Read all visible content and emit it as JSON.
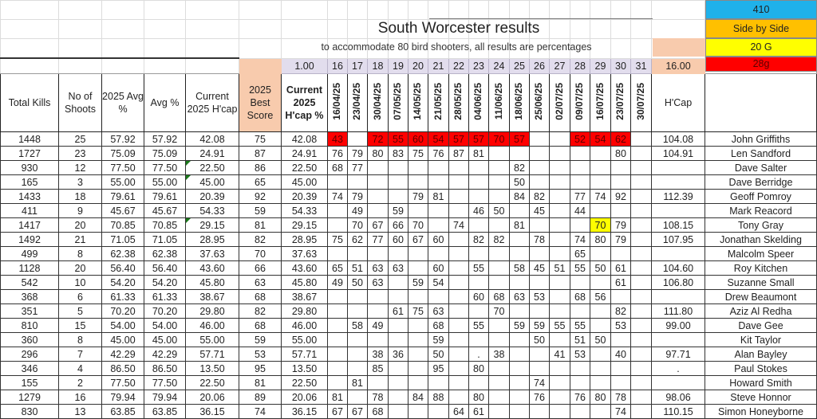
{
  "title": "South Worcester results",
  "subtitle": "to accommodate 80 bird shooters, all results are percentages",
  "legend": [
    {
      "label": "410",
      "color": "#1fb1ea"
    },
    {
      "label": "Side by Side",
      "color": "#ffc000"
    },
    {
      "label": "20 G",
      "color": "#ffff00"
    },
    {
      "label": "28g",
      "color": "#ff0000"
    }
  ],
  "factor": "1.00",
  "hcap_factor": "16.00",
  "shoot_numbers": [
    "16",
    "17",
    "18",
    "19",
    "20",
    "21",
    "22",
    "23",
    "24",
    "25",
    "26",
    "27",
    "28",
    "29",
    "30",
    "31"
  ],
  "headers": {
    "total_kills": "Total  Kills",
    "no_of_shoots": "No of Shoots",
    "avg_2025": "2025 Avg   %",
    "avg": "Avg %",
    "current_hcap": "Current 2025 H'cap",
    "best_score": "2025 Best Score",
    "current_hcap_pct": "Current 2025 H'cap %",
    "hcap": "H'Cap"
  },
  "dates": [
    "16/04/25",
    "23/04/25",
    "30/04/25",
    "07/05/25",
    "14/05/25",
    "21/05/25",
    "28/05/25",
    "04/06/25",
    "11/06/25",
    "18/06/25",
    "25/06/25",
    "02/07/25",
    "09/07/25",
    "16/07/25",
    "23/07/25",
    "30/07/25"
  ],
  "highlight_colors": {
    "red": "#ff0000",
    "yellow": "#ffff00"
  },
  "rows": [
    {
      "total_kills": "1448",
      "shoots": "25",
      "avg_2025": "57.92",
      "avg": "57.92",
      "current_hcap": "42.08",
      "best": "75",
      "current_hcap_pct": "42.08",
      "scores": [
        "43",
        "",
        "72",
        "55",
        "60",
        "54",
        "57",
        "57",
        "70",
        "57",
        "",
        "",
        "52",
        "54",
        "62",
        ""
      ],
      "hcap": "104.08",
      "name": "John Griffiths",
      "fill": "red"
    },
    {
      "total_kills": "1727",
      "shoots": "23",
      "avg_2025": "75.09",
      "avg": "75.09",
      "current_hcap": "24.91",
      "best": "87",
      "current_hcap_pct": "24.91",
      "scores": [
        "76",
        "79",
        "80",
        "83",
        "75",
        "76",
        "87",
        "81",
        "",
        "",
        "",
        "",
        "",
        "",
        "80",
        ""
      ],
      "hcap": "104.91",
      "name": "Len Sandford"
    },
    {
      "total_kills": "930",
      "shoots": "12",
      "avg_2025": "77.50",
      "avg": "77.50",
      "current_hcap": "22.50",
      "best": "86",
      "current_hcap_pct": "22.50",
      "scores": [
        "68",
        "77",
        "",
        "",
        "",
        "",
        "",
        "",
        "",
        "82",
        "",
        "",
        "",
        "",
        "",
        ""
      ],
      "hcap": "",
      "name": "Dave Salter"
    },
    {
      "total_kills": "165",
      "shoots": "3",
      "avg_2025": "55.00",
      "avg": "55.00",
      "current_hcap": "45.00",
      "best": "65",
      "current_hcap_pct": "45.00",
      "scores": [
        "",
        "",
        "",
        "",
        "",
        "",
        "",
        "",
        "",
        "50",
        "",
        "",
        "",
        "",
        "",
        ""
      ],
      "hcap": "",
      "name": "Dave Berridge"
    },
    {
      "total_kills": "1433",
      "shoots": "18",
      "avg_2025": "79.61",
      "avg": "79.61",
      "current_hcap": "20.39",
      "best": "92",
      "current_hcap_pct": "20.39",
      "scores": [
        "74",
        "79",
        "",
        "",
        "79",
        "81",
        "",
        "",
        "",
        "84",
        "82",
        "",
        "77",
        "74",
        "92",
        ""
      ],
      "hcap": "112.39",
      "name": "Geoff  Pomroy"
    },
    {
      "total_kills": "411",
      "shoots": "9",
      "avg_2025": "45.67",
      "avg": "45.67",
      "current_hcap": "54.33",
      "best": "59",
      "current_hcap_pct": "54.33",
      "scores": [
        "",
        "49",
        "",
        "59",
        "",
        "",
        "",
        "46",
        "50",
        "",
        "45",
        "",
        "44",
        "",
        "",
        ""
      ],
      "hcap": "",
      "name": "Mark Reacord"
    },
    {
      "total_kills": "1417",
      "shoots": "20",
      "avg_2025": "70.85",
      "avg": "70.85",
      "current_hcap": "29.15",
      "best": "81",
      "current_hcap_pct": "29.15",
      "scores": [
        "",
        "70",
        "67",
        "66",
        "70",
        "",
        "74",
        "",
        "",
        "81",
        "",
        "",
        "",
        "70",
        "79",
        ""
      ],
      "hcap": "108.15",
      "name": "Tony Gray",
      "yellow_index": 13
    },
    {
      "total_kills": "1492",
      "shoots": "21",
      "avg_2025": "71.05",
      "avg": "71.05",
      "current_hcap": "28.95",
      "best": "82",
      "current_hcap_pct": "28.95",
      "scores": [
        "75",
        "62",
        "77",
        "60",
        "67",
        "60",
        "",
        "82",
        "82",
        "",
        "78",
        "",
        "74",
        "80",
        "79",
        ""
      ],
      "hcap": "107.95",
      "name": "Jonathan Skelding"
    },
    {
      "total_kills": "499",
      "shoots": "8",
      "avg_2025": "62.38",
      "avg": "62.38",
      "current_hcap": "37.63",
      "best": "70",
      "current_hcap_pct": "37.63",
      "scores": [
        "",
        "",
        "",
        "",
        "",
        "",
        "",
        "",
        "",
        "",
        "",
        "",
        "65",
        "",
        "",
        ""
      ],
      "hcap": "",
      "name": "Malcolm Speer"
    },
    {
      "total_kills": "1128",
      "shoots": "20",
      "avg_2025": "56.40",
      "avg": "56.40",
      "current_hcap": "43.60",
      "best": "66",
      "current_hcap_pct": "43.60",
      "scores": [
        "65",
        "51",
        "63",
        "63",
        "",
        "60",
        "",
        "55",
        "",
        "58",
        "45",
        "51",
        "55",
        "50",
        "61",
        ""
      ],
      "hcap": "104.60",
      "name": "Roy Kitchen"
    },
    {
      "total_kills": "542",
      "shoots": "10",
      "avg_2025": "54.20",
      "avg": "54.20",
      "current_hcap": "45.80",
      "best": "63",
      "current_hcap_pct": "45.80",
      "scores": [
        "49",
        "50",
        "63",
        "",
        "59",
        "54",
        "",
        "",
        "",
        "",
        "",
        "",
        "",
        "",
        "61",
        ""
      ],
      "hcap": "106.80",
      "name": "Suzanne Small"
    },
    {
      "total_kills": "368",
      "shoots": "6",
      "avg_2025": "61.33",
      "avg": "61.33",
      "current_hcap": "38.67",
      "best": "68",
      "current_hcap_pct": "38.67",
      "scores": [
        "",
        "",
        "",
        "",
        "",
        "",
        "",
        "60",
        "68",
        "63",
        "53",
        "",
        "68",
        "56",
        "",
        ""
      ],
      "hcap": "",
      "name": "Drew Beaumont"
    },
    {
      "total_kills": "351",
      "shoots": "5",
      "avg_2025": "70.20",
      "avg": "70.20",
      "current_hcap": "29.80",
      "best": "82",
      "current_hcap_pct": "29.80",
      "scores": [
        "",
        "",
        "",
        "61",
        "75",
        "63",
        "",
        "",
        "70",
        "",
        "",
        "",
        "",
        "",
        "82",
        ""
      ],
      "hcap": "111.80",
      "name": "Aziz Al Redha"
    },
    {
      "total_kills": "810",
      "shoots": "15",
      "avg_2025": "54.00",
      "avg": "54.00",
      "current_hcap": "46.00",
      "best": "68",
      "current_hcap_pct": "46.00",
      "scores": [
        "",
        "58",
        "49",
        "",
        "",
        "68",
        "",
        "55",
        "",
        "59",
        "59",
        "55",
        "55",
        "",
        "53",
        ""
      ],
      "hcap": "99.00",
      "name": "Dave Gee"
    },
    {
      "total_kills": "360",
      "shoots": "8",
      "avg_2025": "45.00",
      "avg": "45.00",
      "current_hcap": "55.00",
      "best": "59",
      "current_hcap_pct": "55.00",
      "scores": [
        "",
        "",
        "",
        "",
        "",
        "59",
        "",
        "",
        "",
        "",
        "50",
        "",
        "51",
        "50",
        "",
        ""
      ],
      "hcap": "",
      "name": "Kit Taylor"
    },
    {
      "total_kills": "296",
      "shoots": "7",
      "avg_2025": "42.29",
      "avg": "42.29",
      "current_hcap": "57.71",
      "best": "53",
      "current_hcap_pct": "57.71",
      "scores": [
        "",
        "",
        "38",
        "36",
        "",
        "50",
        "",
        ".",
        "38",
        "",
        "",
        "41",
        "53",
        "",
        "40",
        ""
      ],
      "hcap": "97.71",
      "name": "Alan Bayley"
    },
    {
      "total_kills": "346",
      "shoots": "4",
      "avg_2025": "86.50",
      "avg": "86.50",
      "current_hcap": "13.50",
      "best": "95",
      "current_hcap_pct": "13.50",
      "scores": [
        "",
        "",
        "85",
        "",
        "",
        "95",
        "",
        "80",
        "",
        "",
        "",
        "",
        "",
        "",
        "",
        ""
      ],
      "hcap": ".",
      "name": "Paul Stokes"
    },
    {
      "total_kills": "155",
      "shoots": "2",
      "avg_2025": "77.50",
      "avg": "77.50",
      "current_hcap": "22.50",
      "best": "81",
      "current_hcap_pct": "22.50",
      "scores": [
        "",
        "81",
        "",
        "",
        "",
        "",
        "",
        "",
        "",
        "",
        "74",
        "",
        "",
        "",
        "",
        ""
      ],
      "hcap": "",
      "name": "Howard Smith"
    },
    {
      "total_kills": "1279",
      "shoots": "16",
      "avg_2025": "79.94",
      "avg": "79.94",
      "current_hcap": "20.06",
      "best": "89",
      "current_hcap_pct": "20.06",
      "scores": [
        "81",
        "",
        "78",
        "",
        "84",
        "88",
        "",
        "80",
        "",
        "",
        "76",
        "",
        "76",
        "80",
        "78",
        ""
      ],
      "hcap": "98.06",
      "name": "Steve Honnor"
    },
    {
      "total_kills": "830",
      "shoots": "13",
      "avg_2025": "63.85",
      "avg": "63.85",
      "current_hcap": "36.15",
      "best": "74",
      "current_hcap_pct": "36.15",
      "scores": [
        "67",
        "67",
        "68",
        "",
        "",
        "",
        "64",
        "61",
        "",
        "",
        "",
        "",
        "",
        "",
        "74",
        ""
      ],
      "hcap": "110.15",
      "name": "Simon Honeyborne"
    }
  ]
}
